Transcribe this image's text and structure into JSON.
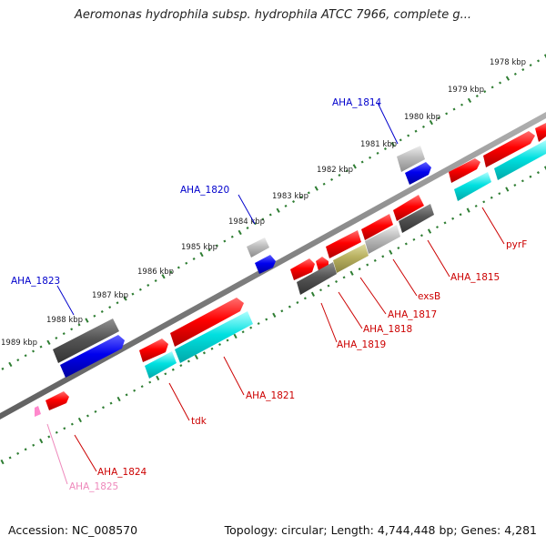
{
  "title": "Aeromonas hydrophila subsp. hydrophila ATCC 7966, complete g...",
  "footer": {
    "accession": "Accession: NC_008570",
    "topology": "Topology: circular; Length: 4,744,448 bp; Genes: 4,281"
  },
  "colors": {
    "backbone": "#7a7a7a",
    "tick": "#2e7d32",
    "tick_label": "#222222",
    "gene_label_blue": "#0000cc",
    "gene_label_red": "#cc0000",
    "gene_label_pink": "#ee88bb",
    "red": "#ff0000",
    "blue": "#0000ee",
    "cyan": "#00dede",
    "dark_gray": "#555555",
    "light_gray": "#bcbcbc",
    "olive": "#b8b060",
    "pink": "#ff88cc"
  },
  "kbp_ticks": [
    "1978 kbp",
    "1979 kbp",
    "1980 kbp",
    "1981 kbp",
    "1982 kbp",
    "1983 kbp",
    "1984 kbp",
    "1985 kbp",
    "1986 kbp",
    "1987 kbp",
    "1988 kbp",
    "1989 kbp"
  ],
  "gene_labels": [
    {
      "id": "AHA_1814",
      "color": "blue"
    },
    {
      "id": "AHA_1820",
      "color": "blue"
    },
    {
      "id": "AHA_1823",
      "color": "blue"
    },
    {
      "id": "pyrF",
      "color": "red"
    },
    {
      "id": "AHA_1815",
      "color": "red"
    },
    {
      "id": "exsB",
      "color": "red"
    },
    {
      "id": "AHA_1817",
      "color": "red"
    },
    {
      "id": "AHA_1818",
      "color": "red"
    },
    {
      "id": "AHA_1819",
      "color": "red"
    },
    {
      "id": "AHA_1821",
      "color": "red"
    },
    {
      "id": "tdk",
      "color": "red"
    },
    {
      "id": "AHA_1824",
      "color": "red"
    },
    {
      "id": "AHA_1825",
      "color": "pink"
    }
  ]
}
